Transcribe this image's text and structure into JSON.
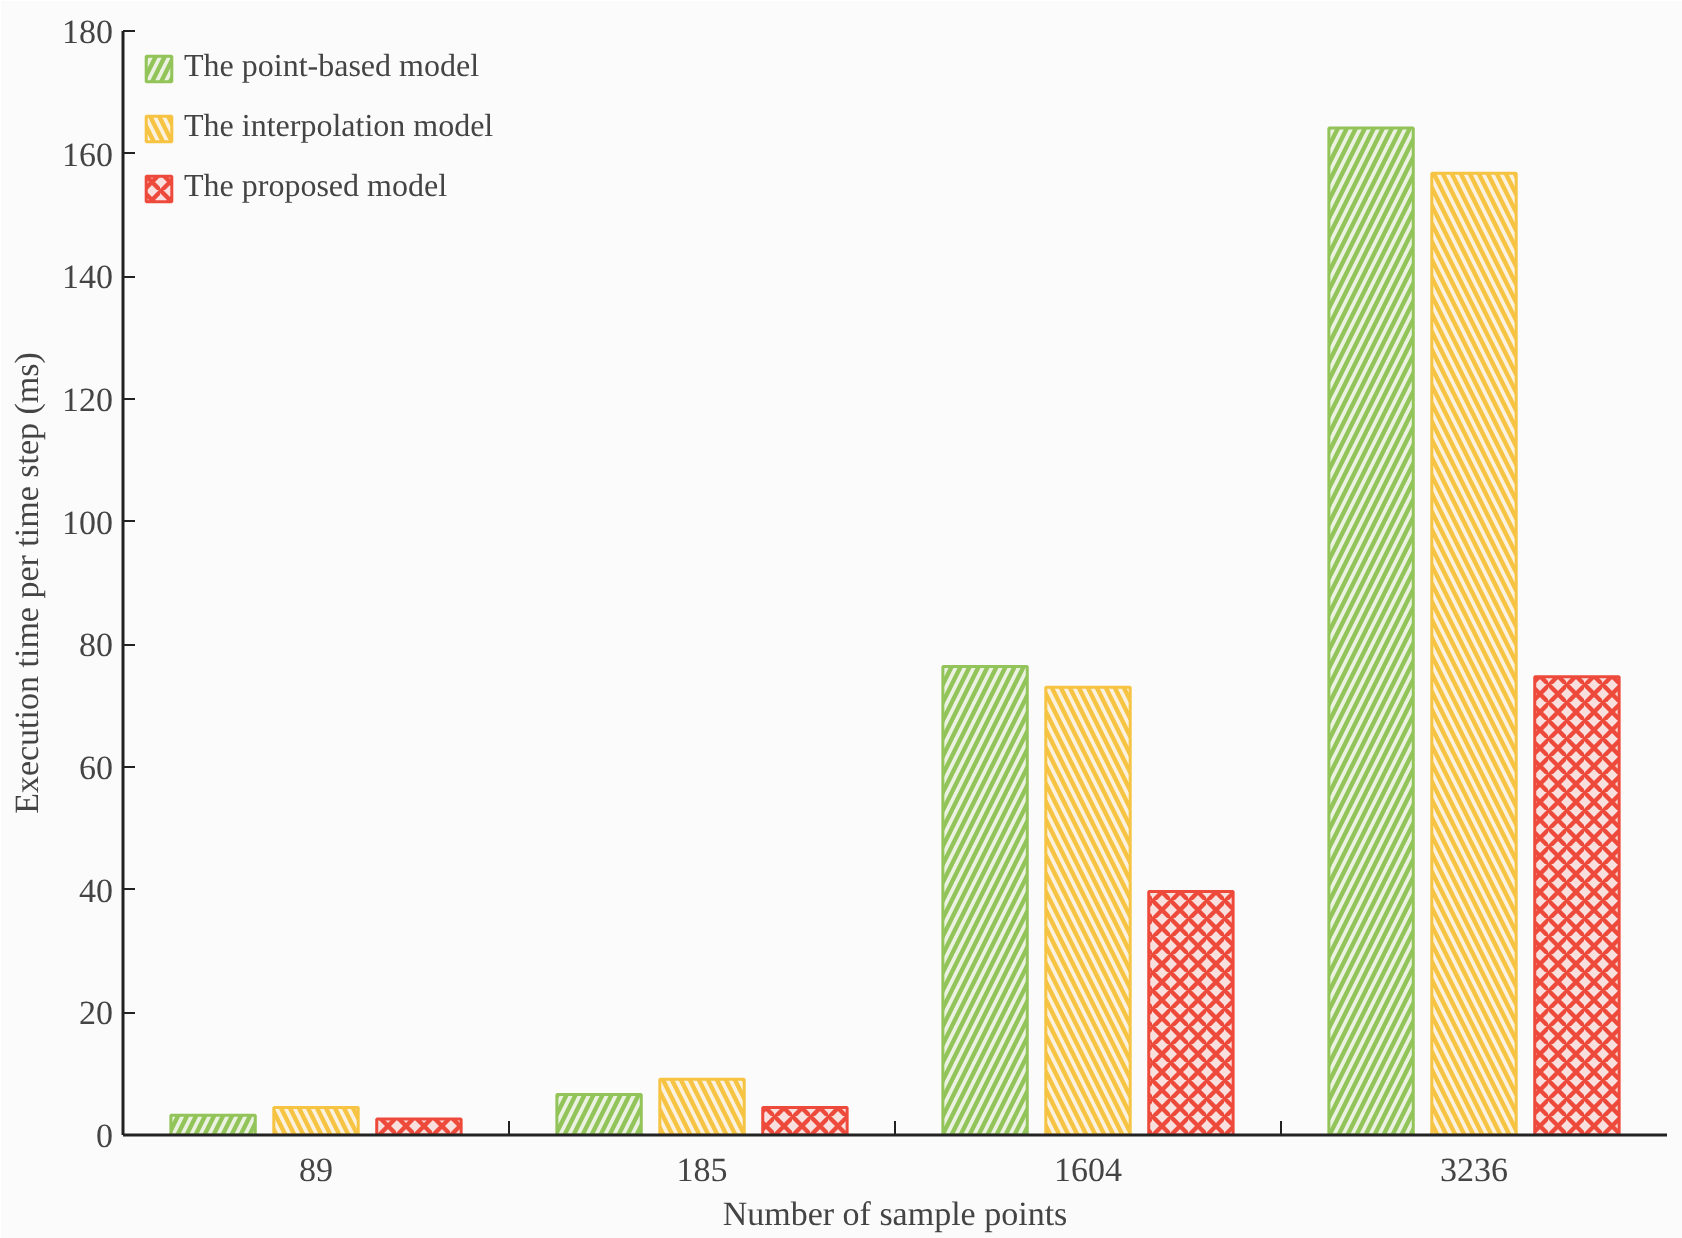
{
  "chart_data": {
    "type": "bar",
    "xlabel": "Number of sample points",
    "ylabel": "Execution time per time step (ms)",
    "categories": [
      "89",
      "185",
      "1604",
      "3236"
    ],
    "series": [
      {
        "name": "The point-based model",
        "color": "#92c45a",
        "values": [
          3.2,
          6.6,
          76.4,
          164.2
        ]
      },
      {
        "name": "The interpolation model",
        "color": "#f6c343",
        "values": [
          4.5,
          9.1,
          73.0,
          156.8
        ]
      },
      {
        "name": "The proposed model",
        "color": "#ee4a3c",
        "values": [
          2.6,
          4.5,
          39.7,
          74.7
        ]
      }
    ],
    "ylim": [
      0,
      180
    ],
    "yticks": [
      0,
      20,
      40,
      60,
      80,
      100,
      120,
      140,
      160,
      180
    ],
    "grid": false,
    "legend": "top left"
  }
}
